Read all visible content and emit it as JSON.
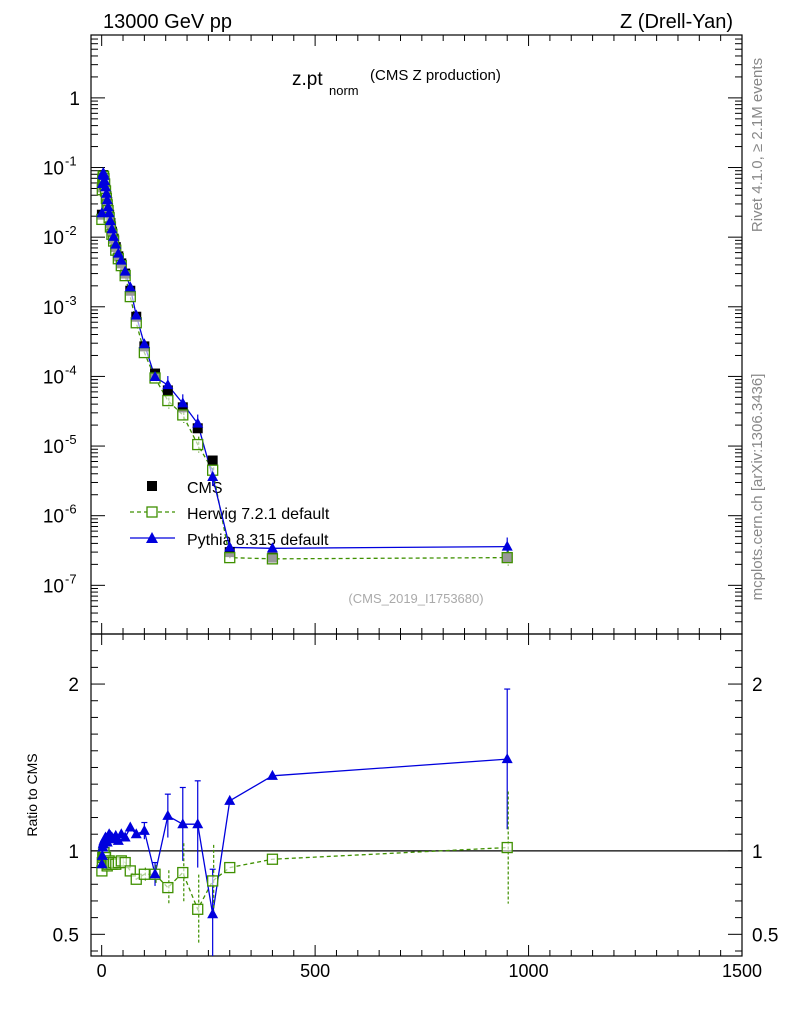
{
  "header": {
    "left": "13000 GeV pp",
    "right": "Z (Drell-Yan)"
  },
  "side": {
    "rivet": "Rivet 4.1.0, ≥ 2.1M events",
    "mcplots": "mcplots.cern.ch [arXiv:1306.3436]"
  },
  "colors": {
    "cms": "#000000",
    "herwig": "#3f9000",
    "pythia": "#0000dd"
  },
  "chart_data": {
    "type": "scatter",
    "title_main": "z.pt",
    "title_sub": "norm",
    "title_note": "(CMS Z production)",
    "analysis_label": "(CMS_2019_I1753680)",
    "upper": {
      "yscale": "log",
      "ylim": [
        2e-08,
        8
      ],
      "ytick_labels": [
        "1",
        "10^-1",
        "10^-2",
        "10^-3",
        "10^-4",
        "10^-5",
        "10^-6",
        "10^-7"
      ],
      "ytick_values": [
        1,
        0.1,
        0.01,
        0.001,
        0.0001,
        1e-05,
        1e-06,
        1e-07
      ]
    },
    "lower": {
      "ylabel": "Ratio to CMS",
      "ylim": [
        0.37,
        2.3
      ],
      "ytick_labels": [
        "0.5",
        "1",
        "2"
      ],
      "ytick_values": [
        0.5,
        1,
        2
      ],
      "reference": 1
    },
    "xlim": [
      -25,
      1500
    ],
    "xtick_labels": [
      "0",
      "500",
      "1000",
      "1500"
    ],
    "xtick_values": [
      0,
      500,
      1000,
      1500
    ],
    "x": [
      0.5,
      1.5,
      2.5,
      3.5,
      4.5,
      5.5,
      7,
      9,
      11,
      13,
      15,
      17.5,
      20.5,
      24,
      28,
      33,
      39,
      46,
      55,
      67,
      81,
      100,
      125,
      155,
      190,
      225,
      260,
      300,
      400,
      950
    ],
    "legend": [
      "CMS",
      "Herwig 7.2.1 default",
      "Pythia 8.315 default"
    ],
    "series": [
      {
        "name": "CMS",
        "values": [
          0.021,
          0.052,
          0.072,
          0.078,
          0.076,
          0.07,
          0.06,
          0.048,
          0.039,
          0.032,
          0.026,
          0.021,
          0.016,
          0.012,
          0.0095,
          0.0072,
          0.0053,
          0.0042,
          0.003,
          0.0017,
          0.00072,
          0.00027,
          0.00011,
          6.3e-05,
          3.6e-05,
          1.8e-05,
          6.2e-06,
          3e-07,
          2.5e-07,
          2.5e-07
        ]
      },
      {
        "name": "Herwig 7.2.1 default",
        "values": [
          0.018,
          0.048,
          0.068,
          0.075,
          0.074,
          0.069,
          0.058,
          0.046,
          0.036,
          0.029,
          0.024,
          0.019,
          0.014,
          0.011,
          0.0088,
          0.0065,
          0.0049,
          0.0039,
          0.0028,
          0.0014,
          0.00059,
          0.00022,
          9.5e-05,
          4.5e-05,
          2.8e-05,
          1.05e-05,
          4.5e-06,
          2.5e-07,
          2.4e-07,
          2.5e-07
        ],
        "ratio": [
          0.88,
          0.93,
          0.96,
          0.97,
          0.98,
          0.99,
          0.97,
          0.96,
          0.93,
          0.91,
          0.92,
          0.94,
          0.93,
          0.92,
          0.93,
          0.92,
          0.93,
          0.94,
          0.93,
          0.88,
          0.83,
          0.86,
          0.86,
          0.78,
          0.87,
          0.65,
          0.82,
          0.9,
          0.95,
          1.02
        ]
      },
      {
        "name": "Pythia 8.315 default",
        "values": [
          0.022,
          0.058,
          0.078,
          0.083,
          0.082,
          0.076,
          0.064,
          0.052,
          0.042,
          0.034,
          0.027,
          0.022,
          0.017,
          0.013,
          0.0101,
          0.0078,
          0.0058,
          0.0046,
          0.0032,
          0.0019,
          0.00075,
          0.00029,
          9.8e-05,
          7.5e-05,
          4.1e-05,
          2.1e-05,
          3.6e-06,
          3.5e-07,
          3.4e-07,
          3.6e-07
        ],
        "ratio": [
          0.92,
          0.97,
          1.02,
          1.04,
          1.05,
          1.06,
          1.07,
          1.08,
          1.06,
          1.05,
          1.08,
          1.1,
          1.09,
          1.08,
          1.07,
          1.09,
          1.06,
          1.1,
          1.08,
          1.14,
          1.1,
          1.12,
          0.86,
          1.21,
          1.16,
          1.16,
          0.62,
          1.3,
          1.45,
          1.55
        ]
      }
    ]
  }
}
